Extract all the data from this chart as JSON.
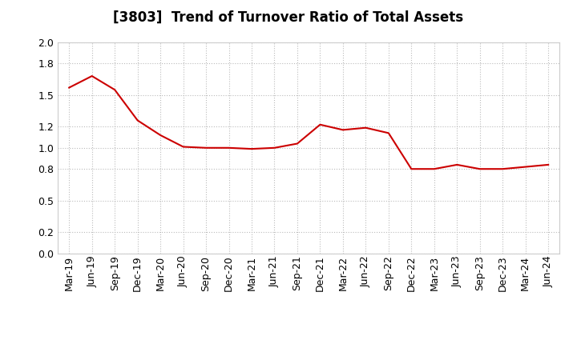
{
  "title": "[3803]  Trend of Turnover Ratio of Total Assets",
  "x_labels": [
    "Mar-19",
    "Jun-19",
    "Sep-19",
    "Dec-19",
    "Mar-20",
    "Jun-20",
    "Sep-20",
    "Dec-20",
    "Mar-21",
    "Jun-21",
    "Sep-21",
    "Dec-21",
    "Mar-22",
    "Jun-22",
    "Sep-22",
    "Dec-22",
    "Mar-23",
    "Jun-23",
    "Sep-23",
    "Dec-23",
    "Mar-24",
    "Jun-24"
  ],
  "y_values": [
    1.57,
    1.68,
    1.55,
    1.26,
    1.12,
    1.01,
    1.0,
    1.0,
    0.99,
    1.0,
    1.04,
    1.22,
    1.17,
    1.19,
    1.14,
    0.8,
    0.8,
    0.84,
    0.8,
    0.8,
    0.82,
    0.84
  ],
  "line_color": "#cc0000",
  "ylim": [
    0.0,
    2.0
  ],
  "yticks": [
    0.0,
    0.2,
    0.5,
    0.8,
    1.0,
    1.2,
    1.5,
    1.8,
    2.0
  ],
  "background_color": "#ffffff",
  "grid_color": "#bbbbbb",
  "title_fontsize": 12,
  "tick_fontsize": 9
}
